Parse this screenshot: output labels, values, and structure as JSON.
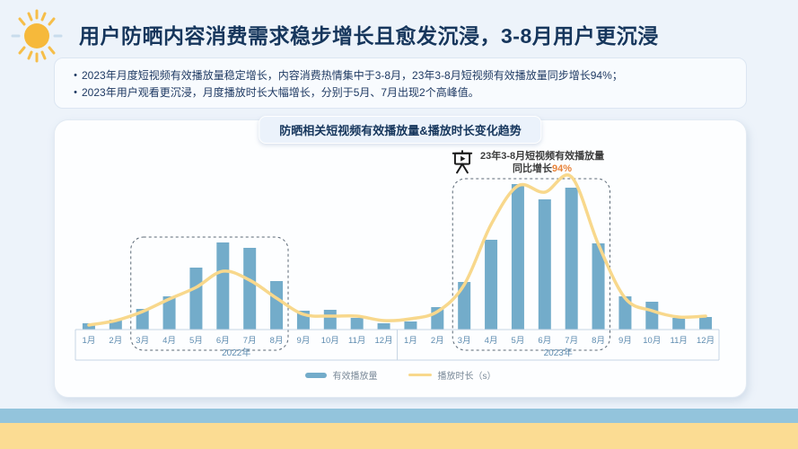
{
  "page": {
    "title": "用户防晒内容消费需求稳步增长且愈发沉浸，3-8月用户更沉浸",
    "bullets": [
      "2023年月度短视频有效播放量稳定增长，内容消费热情集中于3-8月，23年3-8月短视频有效播放量同步增长94%；",
      "2023年用户观看更沉浸，月度播放时长大幅增长，分别于5月、7月出现2个高峰值。"
    ]
  },
  "chart_panel": {
    "title": "防晒相关短视频有效播放量&播放时长变化趋势",
    "annotation": {
      "line1": "23年3-8月短视频有效播放量",
      "line2_prefix": "同比增长",
      "highlight": "94%",
      "highlight_color": "#E8833A"
    }
  },
  "chart_data": {
    "type": "combo bar+line",
    "title": "防晒相关短视频有效播放量&播放时长变化趋势",
    "month_labels": [
      "1月",
      "2月",
      "3月",
      "4月",
      "5月",
      "6月",
      "7月",
      "8月",
      "9月",
      "10月",
      "11月",
      "12月"
    ],
    "year_groups": [
      "2022年",
      "2023年"
    ],
    "series": [
      {
        "name": "有效播放量",
        "type": "bar",
        "color": "#73ACCA",
        "values_2022": [
          7,
          11,
          23,
          37,
          69,
          97,
          91,
          54,
          21,
          22,
          13,
          7
        ],
        "values_2023": [
          9,
          25,
          53,
          100,
          162,
          145,
          158,
          96,
          37,
          31,
          13,
          14
        ]
      },
      {
        "name": "播放时长（s）",
        "type": "line",
        "color": "#F8D88C",
        "values_2022": [
          5,
          10,
          20,
          34,
          47,
          65,
          55,
          35,
          17,
          15,
          15,
          10
        ],
        "values_2023": [
          12,
          20,
          50,
          117,
          160,
          153,
          170,
          95,
          35,
          21,
          14,
          15
        ]
      }
    ],
    "highlight_ranges": [
      {
        "label": "2022年3-8月",
        "from_index": 2,
        "to_index": 7
      },
      {
        "label": "2023年3-8月",
        "from_index": 14,
        "to_index": 19
      }
    ],
    "y_axis": "hidden（图中无数值轴，数值为按像素估算的相对值）",
    "ylim": [
      0,
      180
    ],
    "grid": false,
    "legend_position": "bottom",
    "axis_label_color": "#5E8CB0",
    "axis_line_color": "#C7D5E4",
    "highlight_box_color": "#5A6876"
  },
  "footer": {
    "band_blue": "#93C4DC",
    "band_yellow": "#FBDC93"
  }
}
